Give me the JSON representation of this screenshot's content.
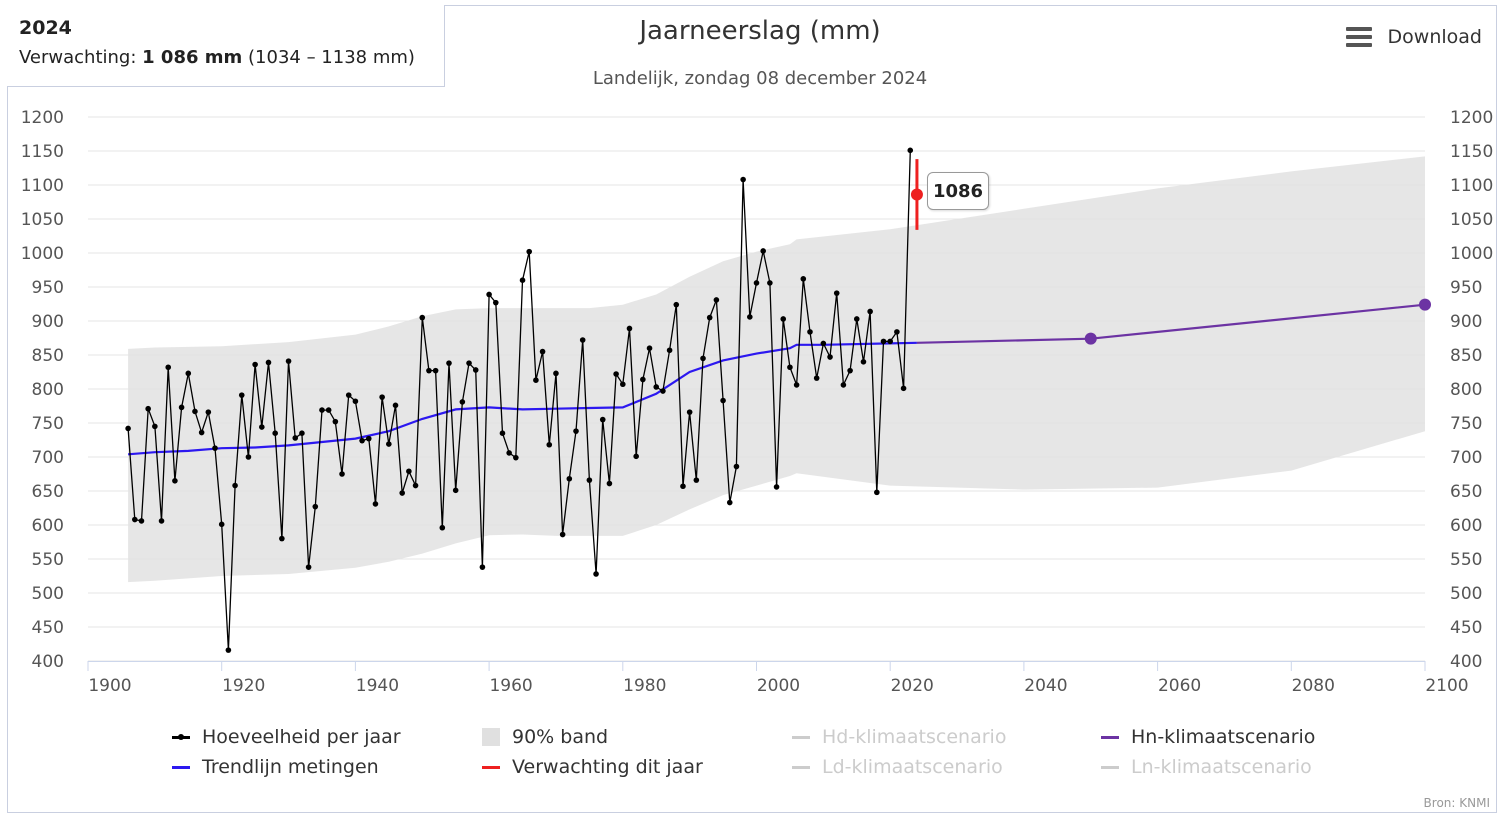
{
  "info": {
    "year": "2024",
    "label": "Verwachting:",
    "value": "1 086 mm",
    "range": "(1034 – 1138 mm)"
  },
  "title": "Jaarneerslag (mm)",
  "subtitle": "Landelijk, zondag 08 december 2024",
  "download_label": "Download",
  "icons": {
    "menu": "hamburger-menu-icon"
  },
  "tooltip": "1086",
  "source": "Bron: KNMI",
  "colors": {
    "measurements": "#000000",
    "trend": "#2c18f0",
    "band": "#e2e2e2",
    "forecast": "#ee2020",
    "hn_scenario": "#6c33a3",
    "inactive": "#cccccc"
  },
  "legend": [
    {
      "label": "Hoeveelheid per jaar",
      "symbol": "line-dot",
      "color": "#000000",
      "active": true
    },
    {
      "label": "90% band",
      "symbol": "box",
      "color": "#e0e0e0",
      "active": true
    },
    {
      "label": "Hd-klimaatscenario",
      "symbol": "line",
      "color": "#cccccc",
      "active": false
    },
    {
      "label": "Hn-klimaatscenario",
      "symbol": "line",
      "color": "#6c33a3",
      "active": true
    },
    {
      "label": "Trendlijn metingen",
      "symbol": "line",
      "color": "#2c18f0",
      "active": true
    },
    {
      "label": "Verwachting dit jaar",
      "symbol": "line",
      "color": "#ee2020",
      "active": true
    },
    {
      "label": "Ld-klimaatscenario",
      "symbol": "line",
      "color": "#cccccc",
      "active": false
    },
    {
      "label": "Ln-klimaatscenario",
      "symbol": "line",
      "color": "#cccccc",
      "active": false
    }
  ],
  "chart_data": {
    "type": "line",
    "title": "Jaarneerslag (mm)",
    "subtitle": "Landelijk, zondag 08 december 2024",
    "xlim": [
      1900,
      2100
    ],
    "ylim": [
      400,
      1200
    ],
    "x_ticks": [
      1900,
      1920,
      1940,
      1960,
      1980,
      2000,
      2020,
      2040,
      2060,
      2080,
      2100
    ],
    "y_ticks": [
      400,
      450,
      500,
      550,
      600,
      650,
      700,
      750,
      800,
      850,
      900,
      950,
      1000,
      1050,
      1100,
      1150,
      1200
    ],
    "y_axis_both_sides": true,
    "grid": "horizontal",
    "legend_position": "bottom",
    "series": [
      {
        "name": "Hoeveelheid per jaar",
        "type": "line-markers",
        "x": [
          1906,
          1907,
          1908,
          1909,
          1910,
          1911,
          1912,
          1913,
          1914,
          1915,
          1916,
          1917,
          1918,
          1919,
          1920,
          1921,
          1922,
          1923,
          1924,
          1925,
          1926,
          1927,
          1928,
          1929,
          1930,
          1931,
          1932,
          1933,
          1934,
          1935,
          1936,
          1937,
          1938,
          1939,
          1940,
          1941,
          1942,
          1943,
          1944,
          1945,
          1946,
          1947,
          1948,
          1949,
          1950,
          1951,
          1952,
          1953,
          1954,
          1955,
          1956,
          1957,
          1958,
          1959,
          1960,
          1961,
          1962,
          1963,
          1964,
          1965,
          1966,
          1967,
          1968,
          1969,
          1970,
          1971,
          1972,
          1973,
          1974,
          1975,
          1976,
          1977,
          1978,
          1979,
          1980,
          1981,
          1982,
          1983,
          1984,
          1985,
          1986,
          1987,
          1988,
          1989,
          1990,
          1991,
          1992,
          1993,
          1994,
          1995,
          1996,
          1997,
          1998,
          1999,
          2000,
          2001,
          2002,
          2003,
          2004,
          2005,
          2006,
          2007,
          2008,
          2009,
          2010,
          2011,
          2012,
          2013,
          2014,
          2015,
          2016,
          2017,
          2018,
          2019,
          2020,
          2021,
          2022,
          2023
        ],
        "y": [
          742,
          608,
          606,
          771,
          745,
          606,
          832,
          665,
          773,
          823,
          767,
          736,
          766,
          713,
          601,
          416,
          658,
          791,
          700,
          836,
          744,
          839,
          735,
          580,
          841,
          728,
          735,
          538,
          627,
          769,
          769,
          752,
          675,
          791,
          782,
          724,
          727,
          631,
          788,
          719,
          776,
          647,
          679,
          658,
          905,
          827,
          827,
          596,
          838,
          651,
          781,
          838,
          828,
          538,
          939,
          927,
          735,
          706,
          699,
          960,
          1002,
          813,
          855,
          718,
          823,
          586,
          668,
          738,
          872,
          666,
          528,
          755,
          661,
          822,
          807,
          889,
          701,
          814,
          860,
          803,
          797,
          857,
          924,
          657,
          766,
          666,
          845,
          905,
          931,
          783,
          633,
          686,
          1108,
          906,
          956,
          1003,
          956,
          656,
          903,
          832,
          806,
          962,
          884,
          816,
          867,
          847,
          941,
          806,
          827,
          903,
          840,
          914,
          648,
          870,
          870,
          884,
          801,
          1151
        ]
      },
      {
        "name": "Trendlijn metingen",
        "type": "line",
        "x": [
          1906,
          1910,
          1915,
          1920,
          1925,
          1930,
          1935,
          1940,
          1945,
          1950,
          1955,
          1960,
          1965,
          1970,
          1975,
          1980,
          1985,
          1990,
          1995,
          2000,
          2005,
          2006,
          2010,
          2020,
          2024
        ],
        "y": [
          704,
          707,
          709,
          713,
          714,
          717,
          722,
          727,
          738,
          756,
          770,
          773,
          770,
          771,
          772,
          773,
          793,
          825,
          842,
          852,
          860,
          865,
          865,
          867,
          868
        ]
      },
      {
        "name": "90% band",
        "type": "area-range",
        "x": [
          1906,
          1910,
          1920,
          1930,
          1940,
          1945,
          1950,
          1955,
          1960,
          1965,
          1970,
          1975,
          1980,
          1985,
          1990,
          1995,
          2000,
          2005,
          2006,
          2020,
          2040,
          2060,
          2080,
          2100
        ],
        "low": [
          516,
          518,
          525,
          528,
          537,
          546,
          558,
          573,
          585,
          586,
          584,
          584,
          584,
          600,
          623,
          644,
          658,
          672,
          676,
          658,
          652,
          655,
          680,
          738
        ],
        "high": [
          859,
          861,
          863,
          869,
          880,
          892,
          907,
          917,
          919,
          919,
          919,
          919,
          924,
          939,
          965,
          988,
          1002,
          1013,
          1020,
          1035,
          1065,
          1095,
          1120,
          1142
        ]
      },
      {
        "name": "Hn-klimaatscenario",
        "type": "line-markers",
        "x": [
          2024,
          2050,
          2100
        ],
        "y": [
          868,
          874,
          924
        ],
        "marker_years": [
          2050,
          2100
        ]
      },
      {
        "name": "Verwachting dit jaar",
        "type": "errorbar",
        "x": 2024,
        "y": 1086,
        "low": 1034,
        "high": 1138
      }
    ]
  }
}
